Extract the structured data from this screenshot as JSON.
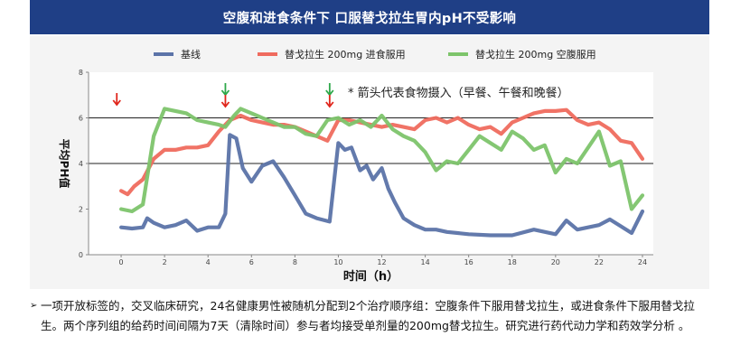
{
  "banner": {
    "title": "空腹和进食条件下 口服替戈拉生胃内pH不受影响"
  },
  "chart_data": {
    "type": "line",
    "xlabel": "时间（h）",
    "ylabel": "平均PH值",
    "xlim": [
      -1.5,
      24.5
    ],
    "ylim": [
      0,
      8
    ],
    "xticks": [
      0,
      2,
      4,
      6,
      8,
      10,
      12,
      14,
      16,
      18,
      20,
      22,
      24
    ],
    "yticks": [
      0,
      2,
      4,
      6,
      8
    ],
    "reference_lines": [
      4,
      6
    ],
    "legend_position": "top",
    "annotation": "* 箭头代表食物摄入（早餐、午餐和晚餐）",
    "meal_markers": {
      "red_down_arrows": [
        -0.2,
        4.8,
        9.6
      ],
      "green_down_arrows": [
        4.8,
        9.6
      ]
    },
    "series": [
      {
        "name": "基线",
        "color": "#5b73a8",
        "x": [
          0,
          0.5,
          1,
          1.2,
          1.5,
          2,
          2.5,
          3,
          3.5,
          4,
          4.5,
          4.8,
          5.0,
          5.3,
          5.6,
          6.0,
          6.5,
          7.0,
          7.5,
          8.0,
          8.5,
          9.0,
          9.6,
          10.0,
          10.3,
          10.6,
          11.0,
          11.3,
          11.6,
          12.0,
          12.3,
          12.6,
          13.0,
          13.5,
          14.0,
          14.5,
          15.0,
          16.0,
          17.0,
          18.0,
          19.0,
          20.0,
          20.5,
          21.0,
          21.5,
          22.0,
          22.5,
          23.0,
          23.5,
          24.0
        ],
        "values": [
          1.2,
          1.15,
          1.2,
          1.6,
          1.4,
          1.2,
          1.3,
          1.5,
          1.05,
          1.2,
          1.2,
          1.8,
          5.25,
          5.1,
          3.8,
          3.2,
          3.9,
          4.1,
          3.4,
          2.6,
          1.8,
          1.6,
          1.45,
          4.9,
          4.6,
          4.7,
          3.7,
          3.9,
          3.3,
          3.8,
          2.9,
          2.3,
          1.6,
          1.3,
          1.1,
          1.1,
          1.0,
          0.9,
          0.85,
          0.85,
          1.1,
          0.9,
          1.5,
          1.1,
          1.2,
          1.3,
          1.55,
          1.25,
          0.95,
          1.9
        ]
      },
      {
        "name": "替戈拉生 200mg 进食服用",
        "color": "#ef6b5e",
        "x": [
          0,
          0.3,
          0.6,
          1.0,
          1.5,
          2.0,
          2.5,
          3.0,
          3.5,
          4.0,
          4.5,
          5.0,
          5.5,
          6.0,
          6.5,
          7.0,
          7.5,
          8.0,
          8.5,
          9.0,
          9.5,
          10.0,
          10.5,
          11.0,
          11.5,
          12.0,
          12.5,
          13.0,
          13.5,
          14.0,
          14.5,
          15.0,
          15.5,
          16.0,
          16.5,
          17.0,
          17.5,
          18.0,
          18.5,
          19.0,
          19.5,
          20.0,
          20.5,
          21.0,
          21.5,
          22.0,
          22.5,
          23.0,
          23.5,
          24.0
        ],
        "values": [
          2.8,
          2.65,
          3.0,
          3.3,
          4.2,
          4.6,
          4.6,
          4.7,
          4.7,
          4.8,
          5.4,
          5.9,
          6.1,
          5.9,
          5.8,
          5.7,
          5.7,
          5.6,
          5.4,
          5.2,
          5.0,
          5.9,
          5.9,
          5.8,
          5.7,
          5.6,
          5.7,
          5.6,
          5.5,
          5.9,
          6.0,
          5.8,
          6.0,
          5.7,
          5.5,
          5.6,
          5.3,
          5.8,
          6.0,
          6.2,
          6.3,
          6.3,
          6.35,
          5.9,
          5.7,
          5.8,
          5.5,
          5.0,
          4.9,
          4.2
        ]
      },
      {
        "name": "替戈拉生 200mg 空腹服用",
        "color": "#7dc46b",
        "x": [
          0,
          0.5,
          1.0,
          1.5,
          2.0,
          2.5,
          3.0,
          3.5,
          4.0,
          4.5,
          4.8,
          5.2,
          5.5,
          6.0,
          6.5,
          7.0,
          7.5,
          8.0,
          8.5,
          9.0,
          9.5,
          10.0,
          10.5,
          11.0,
          11.5,
          12.0,
          12.5,
          13.0,
          13.5,
          14.0,
          14.5,
          15.0,
          15.5,
          16.0,
          16.5,
          17.0,
          17.5,
          18.0,
          18.5,
          19.0,
          19.5,
          20.0,
          20.5,
          21.0,
          21.5,
          22.0,
          22.5,
          23.0,
          23.5,
          24.0
        ],
        "values": [
          2.0,
          1.9,
          2.2,
          5.2,
          6.4,
          6.3,
          6.2,
          5.9,
          5.8,
          5.7,
          5.6,
          6.1,
          6.4,
          6.2,
          6.0,
          5.8,
          5.6,
          5.6,
          5.3,
          5.2,
          5.9,
          6.0,
          5.7,
          5.9,
          5.6,
          6.1,
          5.5,
          5.2,
          5.0,
          4.5,
          3.7,
          4.1,
          4.0,
          4.6,
          5.2,
          4.9,
          4.6,
          5.4,
          5.1,
          4.6,
          4.8,
          3.6,
          4.2,
          4.0,
          4.7,
          5.4,
          3.9,
          4.1,
          2.0,
          2.6
        ]
      }
    ]
  },
  "bullet": {
    "marker": "➢",
    "text": "一项开放标签的，交叉临床研究，24名健康男性被随机分配到2个治疗顺序组：空腹条件下服用替戈拉生，或进食条件下服用替戈拉生。两个序列组的给药时间间隔为7天（清除时间）参与者均接受单剂量的200mg替戈拉生。研究进行药代动力学和药效学分析 。"
  }
}
